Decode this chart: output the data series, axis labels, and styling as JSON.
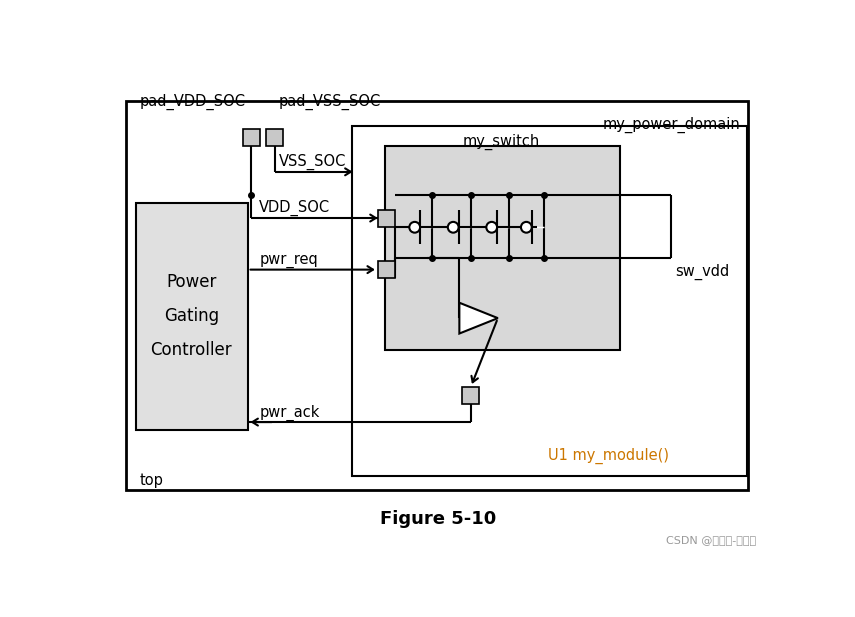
{
  "fig_width": 8.55,
  "fig_height": 6.17,
  "bg_color": "#ffffff",
  "line_color": "#000000",
  "gray_fill": "#d8d8d8",
  "ctrl_fill": "#e0e0e0",
  "pad_fill": "#c8c8c8",
  "orange_color": "#cc7700",
  "figure_caption": "Figure 5-10",
  "watermark": "CSDN @在路上-正出发",
  "pad_vdd_label": "pad_VDD_SOC",
  "pad_vss_label": "pad_VSS_SOC",
  "vss_soc_label": "VSS_SOC",
  "vdd_soc_label": "VDD_SOC",
  "pwr_req_label": "pwr_req",
  "pwr_ack_label": "pwr_ack",
  "sw_vdd_label": "sw_vdd",
  "power_domain_label": "my_power_domain",
  "switch_label": "my_switch",
  "controller_label": [
    "Power",
    "Gating",
    "Controller"
  ],
  "u1_label": "U1 my_module()",
  "top_label": "top"
}
